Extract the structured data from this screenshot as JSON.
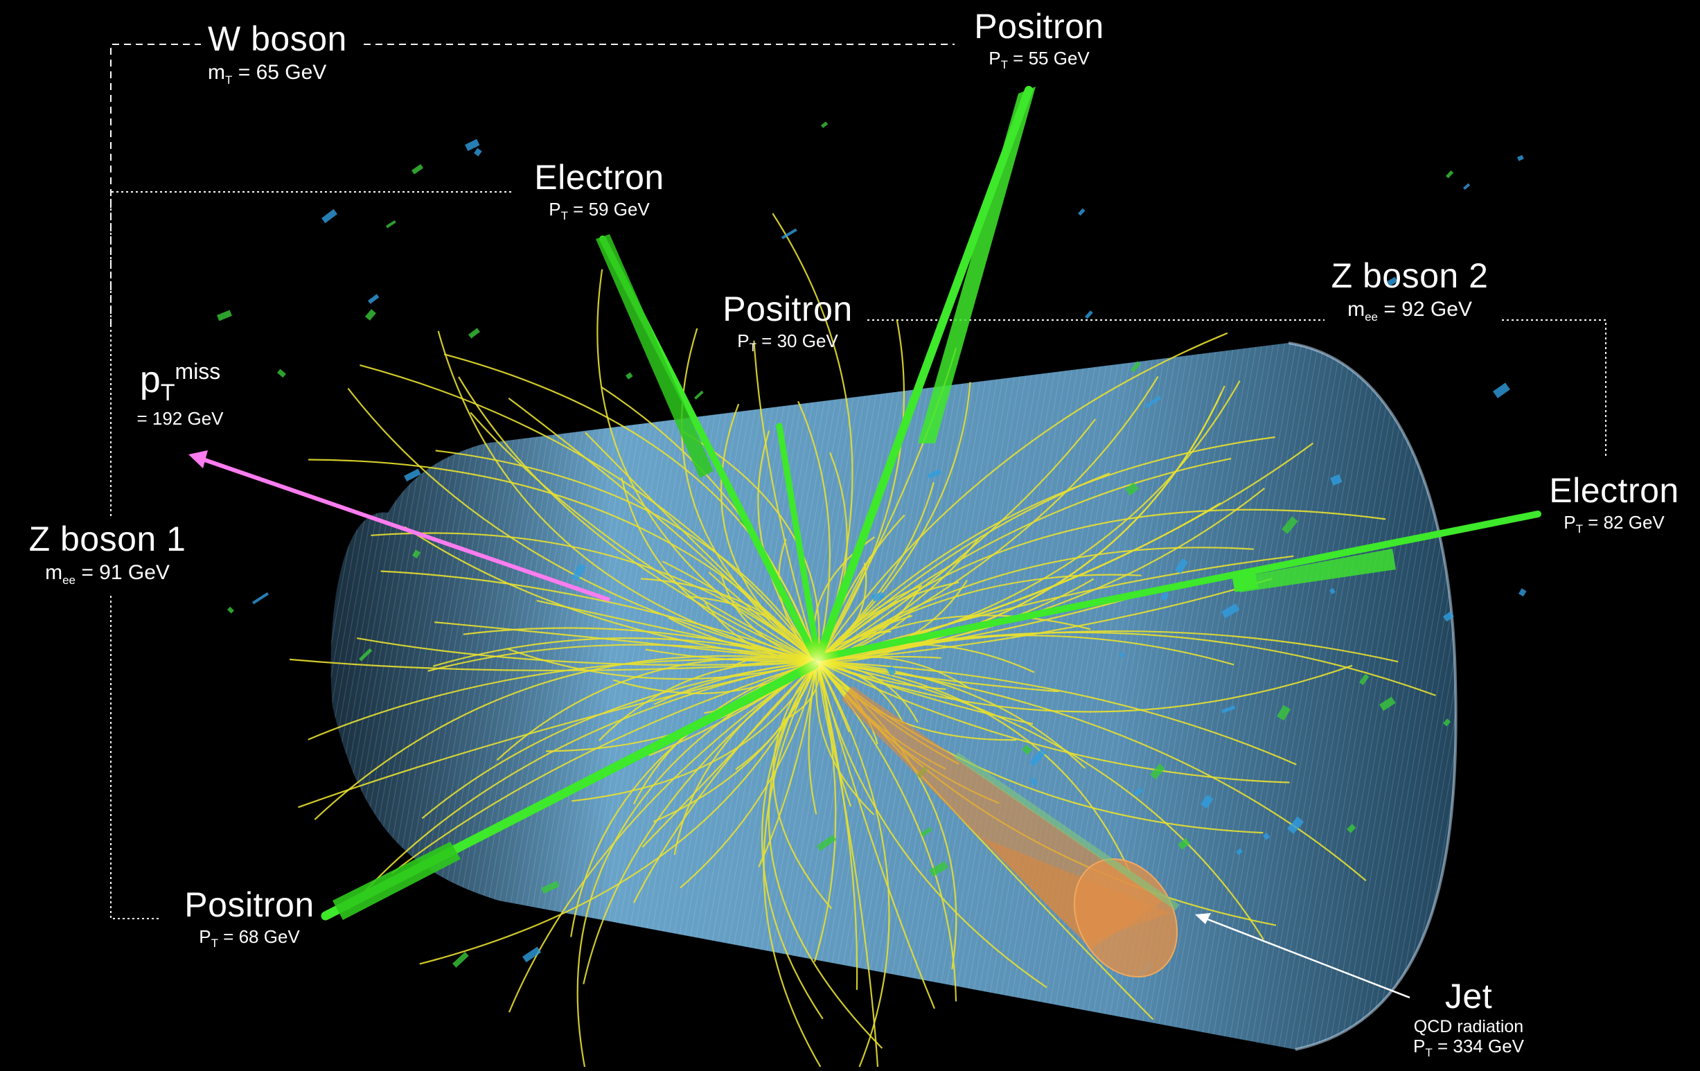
{
  "labels": {
    "w_boson": {
      "title": "W boson",
      "var": "m",
      "sub": "T",
      "value": " = 65 GeV"
    },
    "positron_top": {
      "title": "Positron",
      "var": "P",
      "sub": "T",
      "value": " = 55 GeV"
    },
    "electron_top": {
      "title": "Electron",
      "var": "P",
      "sub": "T",
      "value": " = 59 GeV"
    },
    "positron_mid": {
      "title": "Positron",
      "var": "P",
      "sub": "T",
      "value": " = 30 GeV"
    },
    "z_boson_2": {
      "title": "Z boson 2",
      "var": "m",
      "sub": "ee",
      "value": " = 92 GeV"
    },
    "pt_miss": {
      "var": "p",
      "sub": "T",
      "sup": "miss",
      "value": "= 192 GeV"
    },
    "z_boson_1": {
      "title": "Z boson 1",
      "var": "m",
      "sub": "ee",
      "value": " = 91 GeV"
    },
    "electron_right": {
      "title": "Electron",
      "var": "P",
      "sub": "T",
      "value": " = 82 GeV"
    },
    "positron_bottom": {
      "title": "Positron",
      "var": "P",
      "sub": "T",
      "value": " = 68 GeV"
    },
    "jet": {
      "title": "Jet",
      "desc": "QCD radiation",
      "var": "P",
      "sub": "T",
      "value": " = 334 GeV"
    }
  },
  "colors": {
    "background": "#000000",
    "detector": "#6fb3e0",
    "track_yellow": "#e8e030",
    "lepton_green": "#3ee82a",
    "missing_pt": "#ff7cf0",
    "jet_cone": "#d9823a",
    "calo_hits": "#2f9ee0"
  }
}
